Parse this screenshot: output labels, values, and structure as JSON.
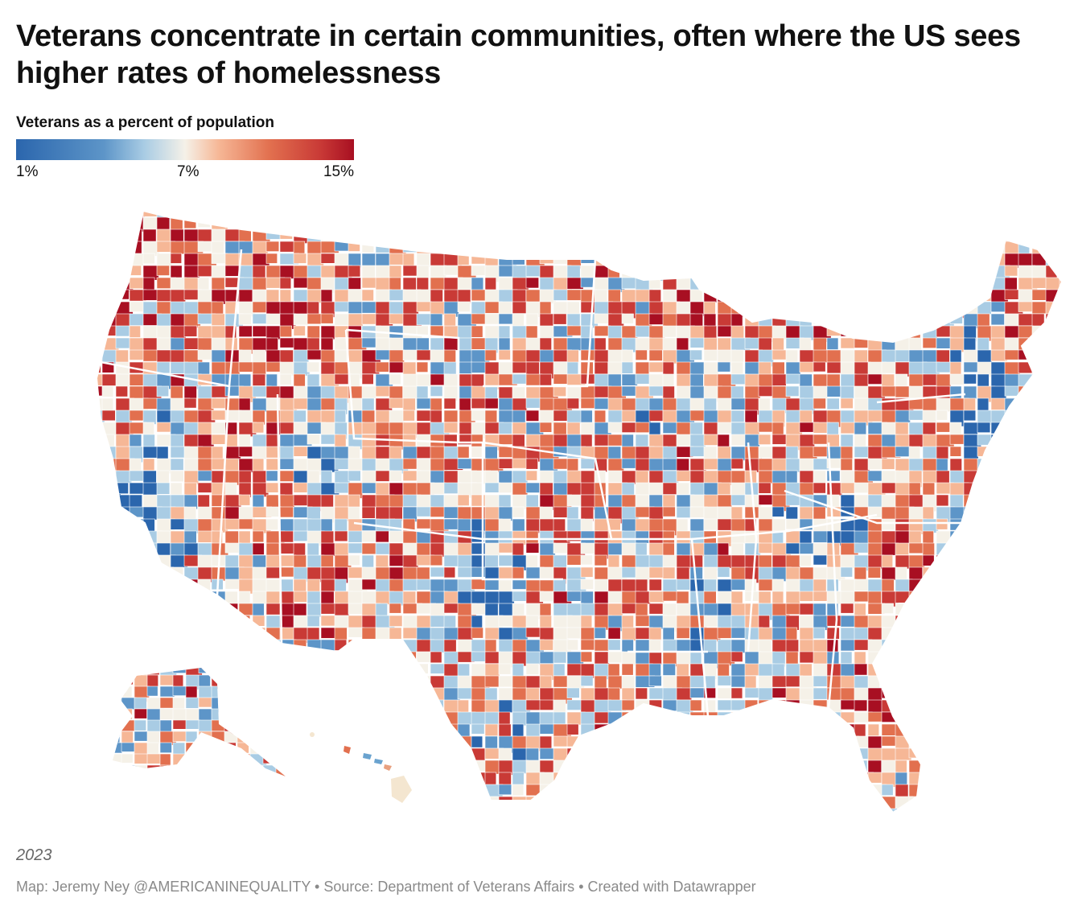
{
  "title": "Veterans concentrate in certain communities, often where the US sees higher rates of homelessness",
  "legend": {
    "title": "Veterans as a percent of population",
    "min_label": "1%",
    "mid_label": "7%",
    "max_label": "15%",
    "min_value": 1,
    "mid_value": 7,
    "max_value": 15,
    "colors": [
      "#2b66ad",
      "#5d95c8",
      "#a9cce4",
      "#f5f1e8",
      "#f6b796",
      "#e2704f",
      "#c93a36",
      "#a80f22"
    ]
  },
  "map": {
    "region": "United States counties",
    "regional_pattern": [
      {
        "region": "Pacific Northwest",
        "level": "high"
      },
      {
        "region": "Northern Rockies",
        "level": "high"
      },
      {
        "region": "California",
        "level": "low"
      },
      {
        "region": "Nevada",
        "level": "high"
      },
      {
        "region": "Utah",
        "level": "low"
      },
      {
        "region": "Arizona / New Mexico",
        "level": "high"
      },
      {
        "region": "Great Plains",
        "level": "mixed"
      },
      {
        "region": "Texas",
        "level": "mixed"
      },
      {
        "region": "Southeast coast",
        "level": "high"
      },
      {
        "region": "Northeast corridor",
        "level": "low"
      },
      {
        "region": "Maine",
        "level": "high"
      },
      {
        "region": "Florida",
        "level": "high"
      },
      {
        "region": "Alaska",
        "level": "mixed"
      },
      {
        "region": "Hawaii",
        "level": "mixed"
      }
    ]
  },
  "year": "2023",
  "footer": {
    "credit": "Map: Jeremy Ney @AMERICANINEQUALITY",
    "source": "Source: Department of Veterans Affairs",
    "tool": "Created with Datawrapper",
    "separator": " • "
  }
}
